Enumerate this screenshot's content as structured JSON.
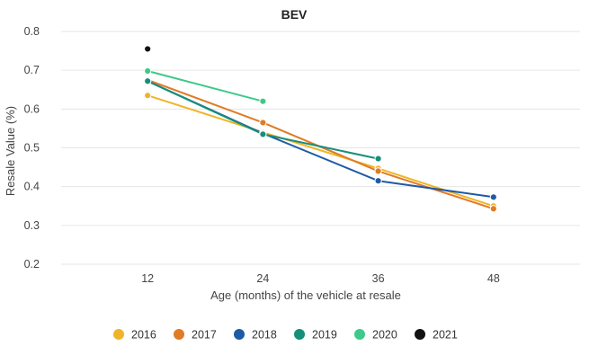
{
  "chart_data": {
    "type": "line",
    "title": "BEV",
    "xlabel": "Age (months) of the vehicle at resale",
    "ylabel": "Resale Value (%)",
    "x": [
      12,
      24,
      36,
      48
    ],
    "x_tick_labels": [
      "12",
      "24",
      "36",
      "48"
    ],
    "y_ticks": [
      0.2,
      0.3,
      0.4,
      0.5,
      0.6,
      0.7,
      0.8
    ],
    "y_tick_labels": [
      "0.2",
      "0.3",
      "0.4",
      "0.5",
      "0.6",
      "0.7",
      "0.8"
    ],
    "xlim": [
      3,
      57
    ],
    "ylim": [
      0.2,
      0.8
    ],
    "grid": "horizontal",
    "legend_position": "bottom",
    "series": [
      {
        "name": "2016",
        "color": "#f0b429",
        "values": [
          0.635,
          0.54,
          0.447,
          0.35
        ]
      },
      {
        "name": "2017",
        "color": "#e07b24",
        "values": [
          0.675,
          0.565,
          0.44,
          0.343
        ]
      },
      {
        "name": "2018",
        "color": "#1f5aa6",
        "values": [
          0.672,
          0.537,
          0.415,
          0.373
        ]
      },
      {
        "name": "2019",
        "color": "#168f7a",
        "values": [
          0.672,
          0.535,
          0.472,
          null
        ]
      },
      {
        "name": "2020",
        "color": "#3ec98a",
        "values": [
          0.698,
          0.62,
          null,
          null
        ]
      },
      {
        "name": "2021",
        "color": "#111111",
        "values": [
          0.755,
          null,
          null,
          null
        ]
      }
    ]
  }
}
